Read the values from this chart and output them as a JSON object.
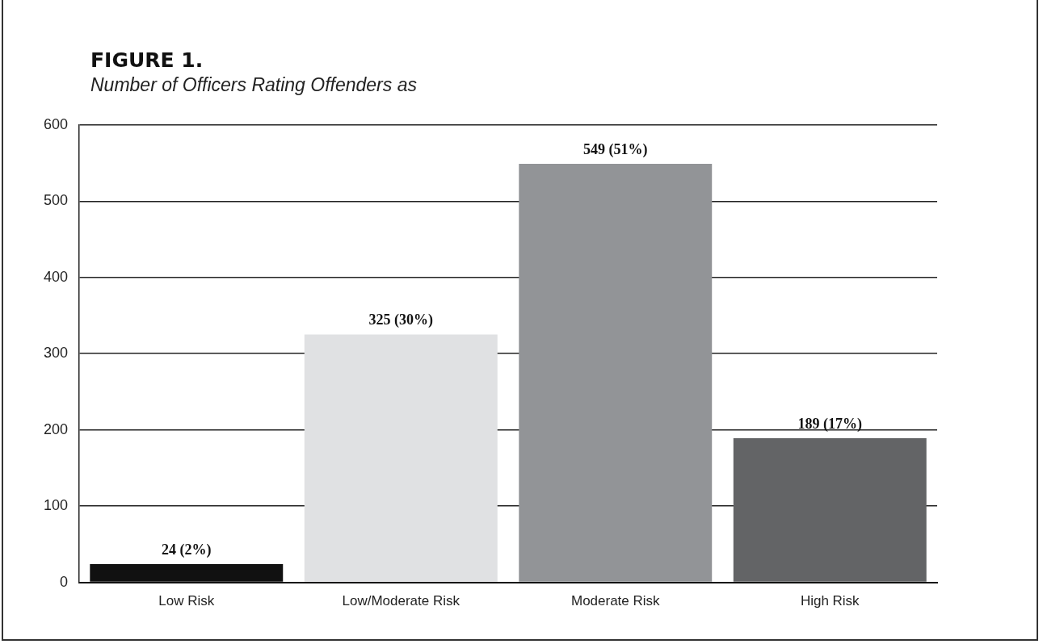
{
  "chart_data": {
    "type": "bar",
    "title": "FIGURE 1.",
    "subtitle": "Number of Officers Rating Offenders as",
    "categories": [
      "Low Risk",
      "Low/Moderate Risk",
      "Moderate Risk",
      "High Risk"
    ],
    "values": [
      24,
      325,
      549,
      189
    ],
    "colors": [
      "#111111",
      "#e0e1e3",
      "#929497",
      "#636466"
    ],
    "value_labels": [
      "24 (2%)",
      "325 (30%)",
      "549 (51%)",
      "189 (17%)"
    ],
    "ylim": [
      0,
      600
    ],
    "yticks": [
      0,
      100,
      200,
      300,
      400,
      500,
      600
    ],
    "grid": "y"
  }
}
